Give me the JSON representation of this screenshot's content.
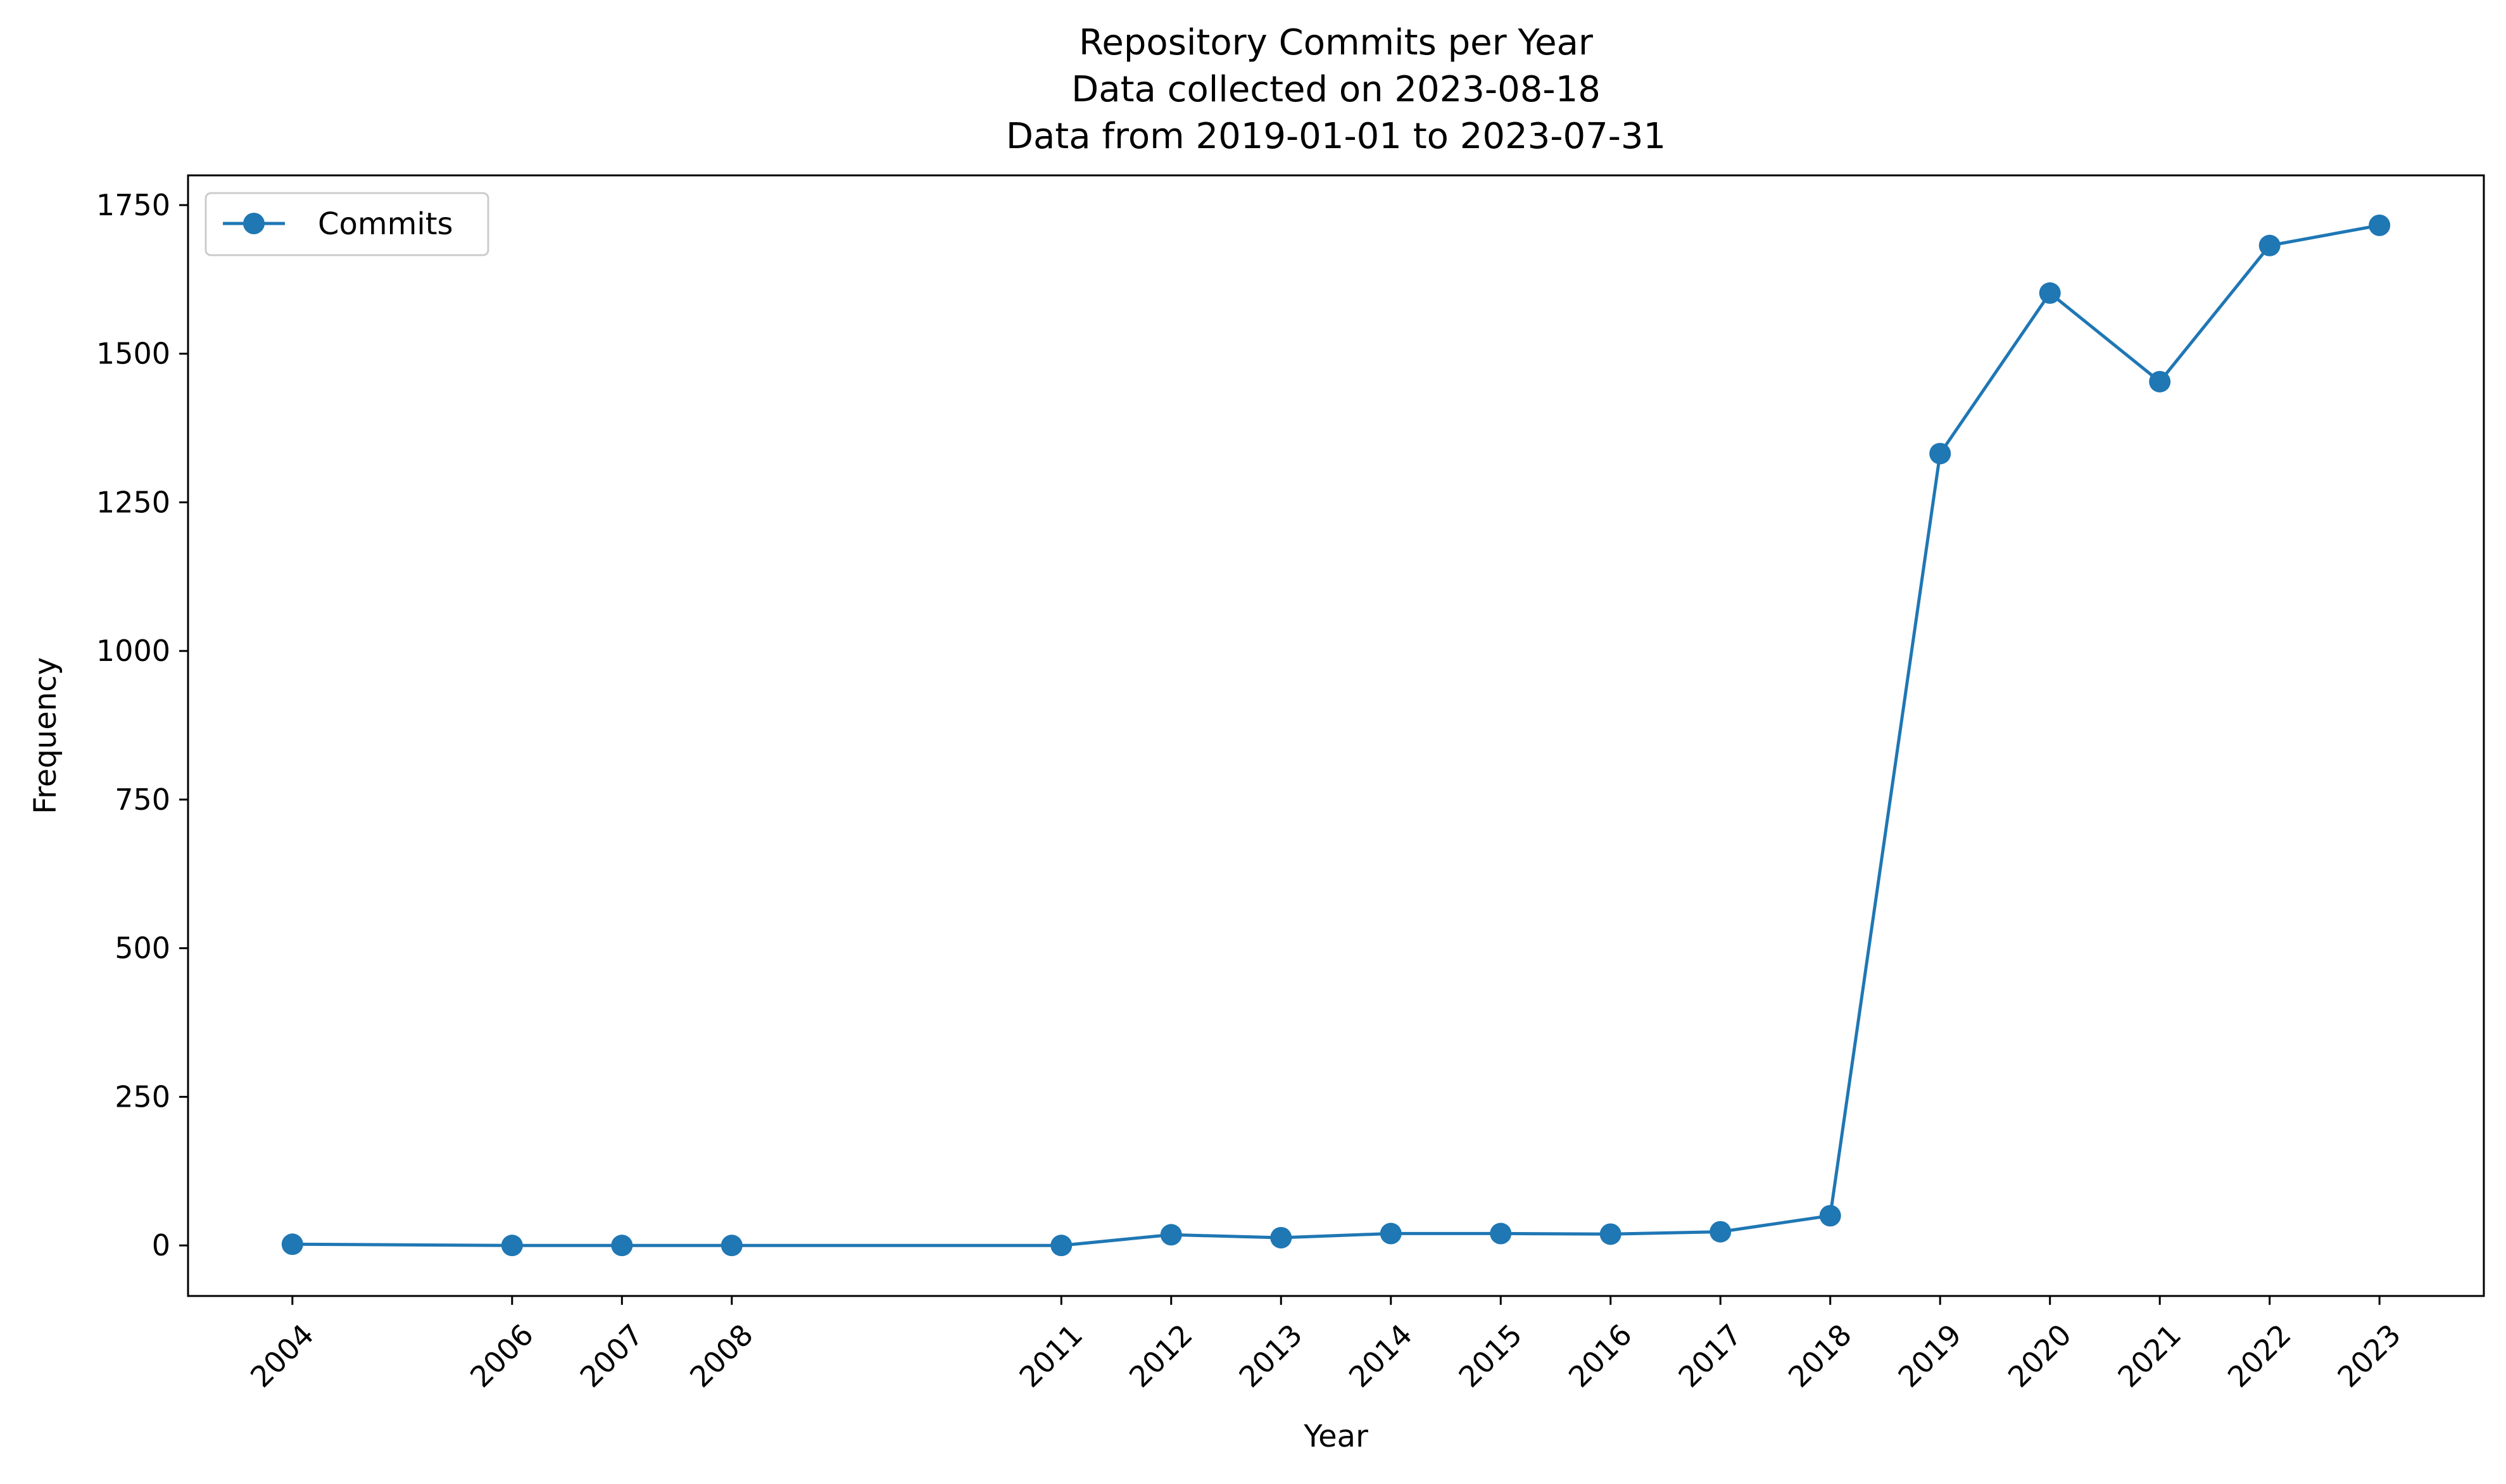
{
  "chart_data": {
    "type": "line",
    "title": [
      "Repository Commits per Year",
      "Data collected on 2023-08-18",
      "Data from 2019-01-01 to 2023-07-31"
    ],
    "xlabel": "Year",
    "ylabel": "Frequency",
    "xlim": [
      2003.05,
      2023.95
    ],
    "ylim": [
      -85,
      1800
    ],
    "x_ticks": [
      "2004",
      "2006",
      "2007",
      "2008",
      "2011",
      "2012",
      "2013",
      "2014",
      "2015",
      "2016",
      "2017",
      "2018",
      "2019",
      "2020",
      "2021",
      "2022",
      "2023"
    ],
    "y_ticks": [
      "0",
      "250",
      "500",
      "750",
      "1000",
      "1250",
      "1500",
      "1750"
    ],
    "tick_rotation_x": 45,
    "grid": false,
    "legend": {
      "position": "top-left",
      "entries": [
        "Commits"
      ]
    },
    "series": [
      {
        "name": "Commits",
        "color": "#1f77b4",
        "marker": "circle",
        "x": [
          2004,
          2006,
          2007,
          2008,
          2011,
          2012,
          2013,
          2014,
          2015,
          2016,
          2017,
          2018,
          2019,
          2020,
          2021,
          2022,
          2023
        ],
        "y": [
          2,
          0,
          0,
          0,
          0,
          18,
          13,
          20,
          20,
          19,
          23,
          50,
          1332,
          1602,
          1453,
          1682,
          1716
        ]
      }
    ]
  }
}
